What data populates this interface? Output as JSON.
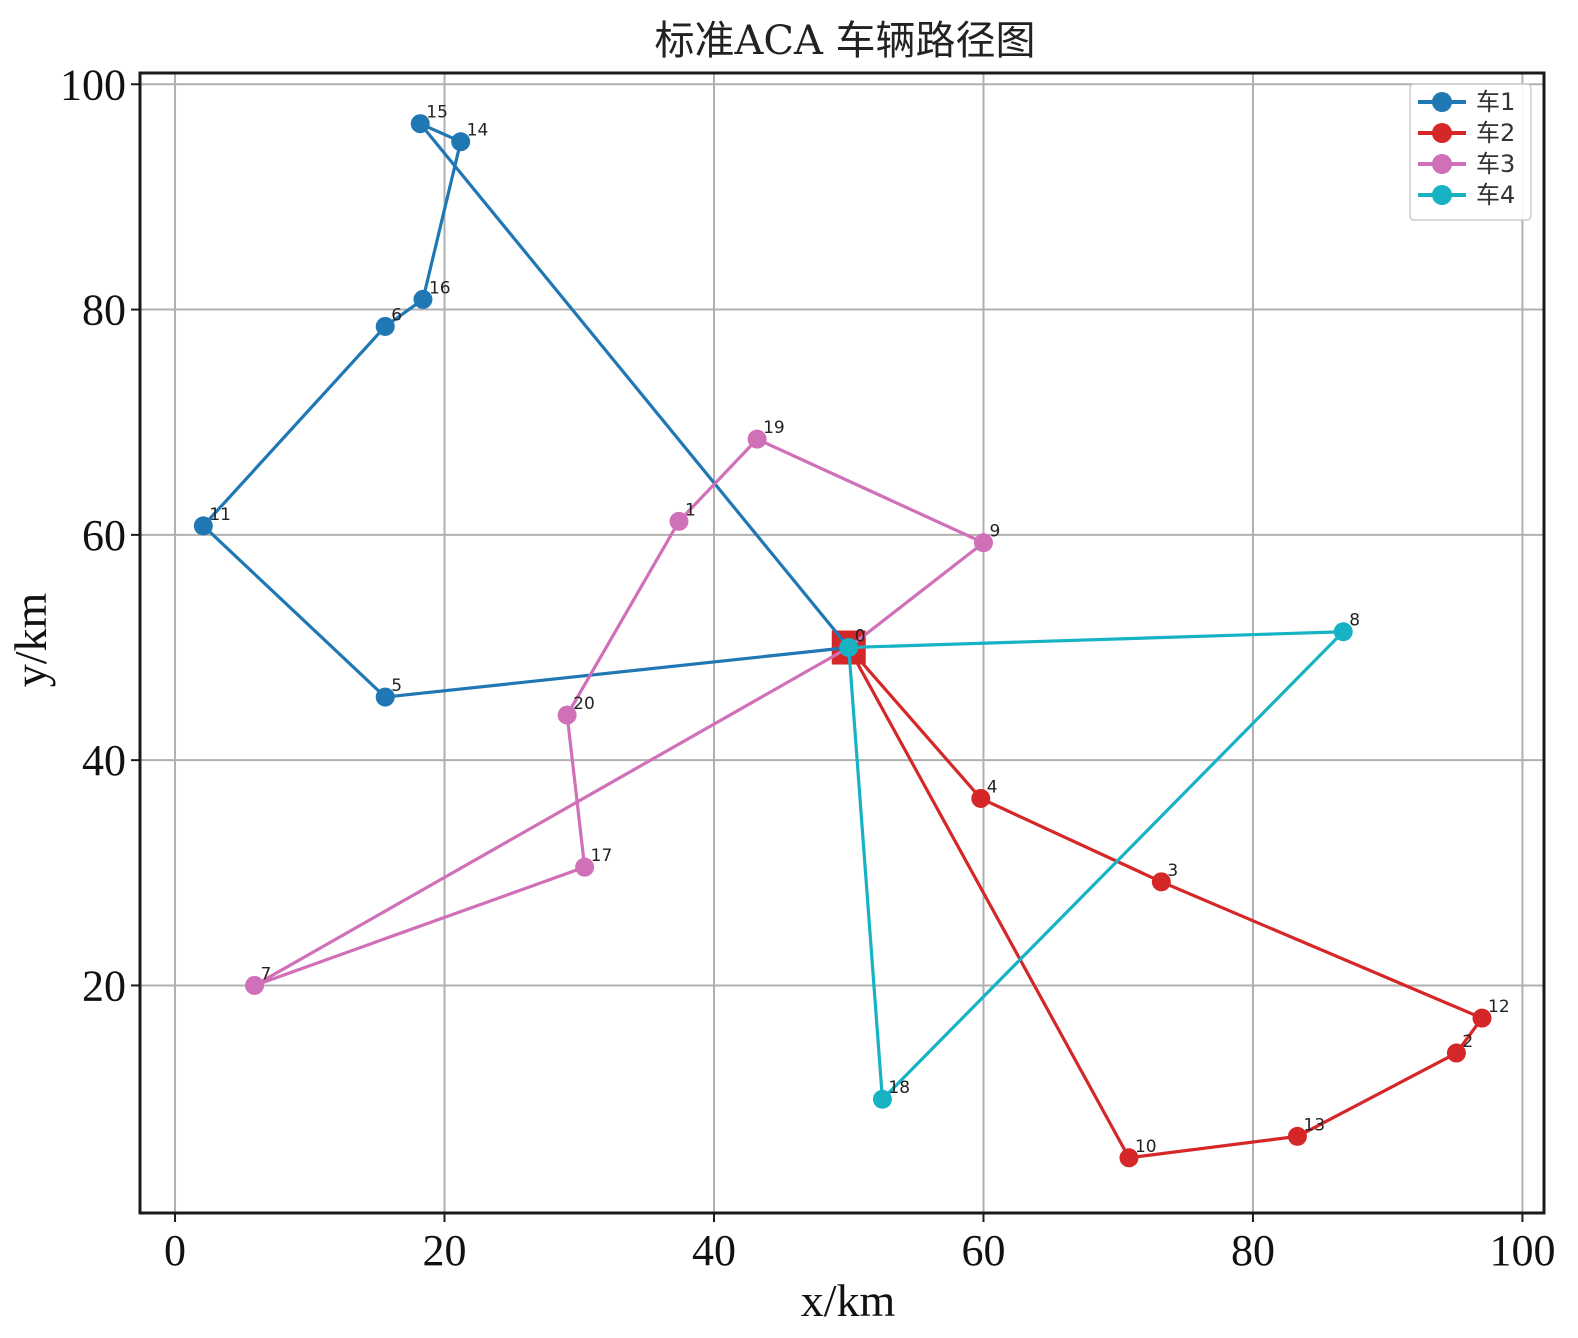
{
  "chart_data": {
    "type": "line",
    "title": "标准ACA 车辆路径图",
    "xlabel": "x/km",
    "ylabel": "y/km",
    "xlim": [
      -2.6,
      101.6
    ],
    "ylim": [
      -0.2,
      101.0
    ],
    "xticks": [
      0,
      20,
      40,
      60,
      80,
      100
    ],
    "yticks": [
      20,
      40,
      60,
      80,
      100
    ],
    "grid": true,
    "legend_position": "top-right",
    "depot": {
      "label": "0",
      "x": 50,
      "y": 50,
      "color": "#d62728"
    },
    "series": [
      {
        "name": "车1",
        "color": "#1f77b4",
        "points": [
          {
            "label": "0",
            "x": 50,
            "y": 50
          },
          {
            "label": "5",
            "x": 15.6,
            "y": 45.6
          },
          {
            "label": "11",
            "x": 2.1,
            "y": 60.8
          },
          {
            "label": "6",
            "x": 15.6,
            "y": 78.5
          },
          {
            "label": "16",
            "x": 18.4,
            "y": 80.9
          },
          {
            "label": "14",
            "x": 21.2,
            "y": 94.9
          },
          {
            "label": "15",
            "x": 18.2,
            "y": 96.5
          },
          {
            "label": "0",
            "x": 50,
            "y": 50
          }
        ]
      },
      {
        "name": "车2",
        "color": "#d62728",
        "points": [
          {
            "label": "0",
            "x": 50,
            "y": 50
          },
          {
            "label": "4",
            "x": 59.8,
            "y": 36.6
          },
          {
            "label": "3",
            "x": 73.2,
            "y": 29.2
          },
          {
            "label": "12",
            "x": 97.0,
            "y": 17.1
          },
          {
            "label": "2",
            "x": 95.1,
            "y": 14.0
          },
          {
            "label": "13",
            "x": 83.3,
            "y": 6.6
          },
          {
            "label": "10",
            "x": 70.8,
            "y": 4.7
          },
          {
            "label": "0",
            "x": 50,
            "y": 50
          }
        ]
      },
      {
        "name": "车3",
        "color": "#d070b8",
        "points": [
          {
            "label": "0",
            "x": 50,
            "y": 50
          },
          {
            "label": "9",
            "x": 60.0,
            "y": 59.3
          },
          {
            "label": "19",
            "x": 43.2,
            "y": 68.5
          },
          {
            "label": "1",
            "x": 37.4,
            "y": 61.2
          },
          {
            "label": "20",
            "x": 29.1,
            "y": 44.0
          },
          {
            "label": "17",
            "x": 30.4,
            "y": 30.5
          },
          {
            "label": "7",
            "x": 5.9,
            "y": 20.0
          },
          {
            "label": "0",
            "x": 50,
            "y": 50
          }
        ]
      },
      {
        "name": "车4",
        "color": "#17b2c4",
        "points": [
          {
            "label": "0",
            "x": 50,
            "y": 50
          },
          {
            "label": "8",
            "x": 86.7,
            "y": 51.4
          },
          {
            "label": "18",
            "x": 52.5,
            "y": 9.9
          },
          {
            "label": "0",
            "x": 50,
            "y": 50
          }
        ]
      }
    ]
  }
}
